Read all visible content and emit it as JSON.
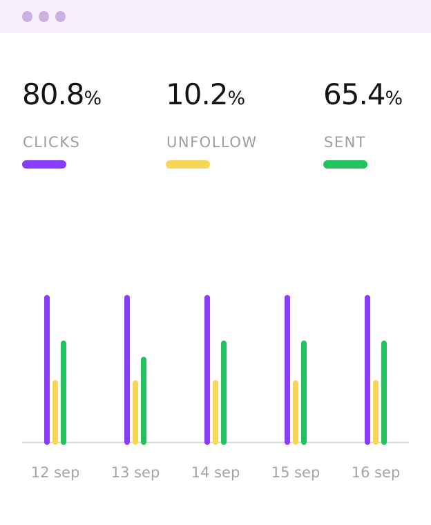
{
  "window": {
    "dots": 3,
    "dot_color": "#cbb1df",
    "bar_color": "#f8effd"
  },
  "stats": [
    {
      "value": "80.8",
      "unit": "%",
      "label": "CLICKS",
      "color": "#8a3cfb"
    },
    {
      "value": "10.2",
      "unit": "%",
      "label": "UNFOLLOW",
      "color": "#f6d654"
    },
    {
      "value": "65.4",
      "unit": "%",
      "label": "SENT",
      "color": "#22c35e"
    }
  ],
  "chart_data": {
    "type": "bar",
    "categories": [
      "12 sep",
      "13 sep",
      "14 sep",
      "15 sep",
      "16 sep"
    ],
    "series": [
      {
        "name": "CLICKS",
        "color": "#8a3cfb",
        "values": [
          100,
          100,
          100,
          100,
          100
        ]
      },
      {
        "name": "UNFOLLOW",
        "color": "#f6d654",
        "values": [
          42,
          42,
          42,
          42,
          42
        ]
      },
      {
        "name": "SENT",
        "color": "#22c35e",
        "values": [
          69,
          58,
          69,
          69,
          69
        ]
      }
    ],
    "ylim": [
      0,
      100
    ],
    "grid": false,
    "legend": "top",
    "baseline_color": "#d9d9d9"
  }
}
